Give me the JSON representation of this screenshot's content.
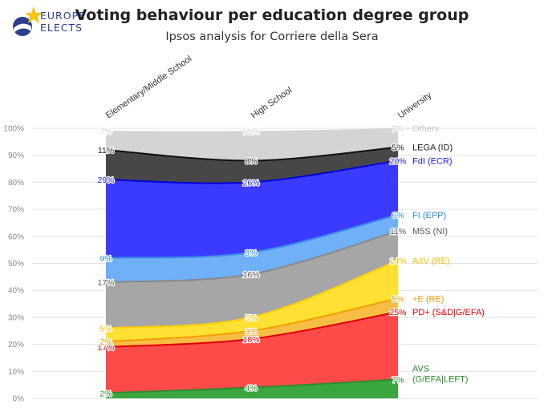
{
  "header": {
    "logo_line1": "EUROPE",
    "logo_line2": "ELECTS",
    "title": "Voting behaviour per education degree group",
    "subtitle": "Ipsos analysis for Corriere della Sera"
  },
  "chart_data": {
    "type": "area",
    "stacked": true,
    "categories": [
      "Elementary/Middle School",
      "High School",
      "University"
    ],
    "ylim": [
      0,
      100
    ],
    "yticks": [
      "0%",
      "10%",
      "20%",
      "30%",
      "40%",
      "50%",
      "60%",
      "70%",
      "80%",
      "90%",
      "100%"
    ],
    "grid": true,
    "legend": "right, labels at end of each area",
    "series": [
      {
        "name": "AVS (G/EFA|LEFT)",
        "legend_lines": [
          "AVS",
          "(G/EFA|LEFT)"
        ],
        "values": [
          2,
          4,
          7
        ],
        "labels": [
          "2%",
          "4%",
          "7%"
        ],
        "color": "#3aa63f",
        "line": "#2e8b31",
        "label_color": "#2e8b31"
      },
      {
        "name": "PD+ (S&D|G/EFA)",
        "legend_lines": [
          "PD+ (S&D|G/EFA)"
        ],
        "values": [
          17,
          18,
          25
        ],
        "labels": [
          "17%",
          "18%",
          "25%"
        ],
        "color": "#ff4a4a",
        "line": "#e00000",
        "label_color": "#dd0000"
      },
      {
        "name": "+E (RE)",
        "legend_lines": [
          "+E (RE)"
        ],
        "values": [
          2,
          3,
          5
        ],
        "labels": [
          "2%",
          "3%",
          "5%"
        ],
        "color": "#f8bd45",
        "line": "#f2a000",
        "label_color": "#f09a00"
      },
      {
        "name": "A/IV (RE)",
        "legend_lines": [
          "A/IV (RE)"
        ],
        "values": [
          5,
          5,
          14
        ],
        "labels": [
          "5%",
          "5%",
          "14%"
        ],
        "color": "#ffe033",
        "line": "#ffd000",
        "label_color": "#f0c000"
      },
      {
        "name": "M5S (NI)",
        "legend_lines": [
          "M5S (NI)"
        ],
        "values": [
          17,
          16,
          11
        ],
        "labels": [
          "17%",
          "16%",
          "11%"
        ],
        "color": "#a6a6a6",
        "line": "#888888",
        "label_color": "#555555"
      },
      {
        "name": "FI (EPP)",
        "legend_lines": [
          "FI (EPP)"
        ],
        "values": [
          9,
          8,
          6
        ],
        "labels": [
          "9%",
          "8%",
          "6%"
        ],
        "color": "#6fb0f7",
        "line": "#3a8ee6",
        "label_color": "#2f8ae0"
      },
      {
        "name": "FdI (ECR)",
        "legend_lines": [
          "FdI (ECR)"
        ],
        "values": [
          29,
          26,
          20
        ],
        "labels": [
          "29%",
          "26%",
          "20%"
        ],
        "color": "#3b3bff",
        "line": "#0000e0",
        "label_color": "#1a1aee"
      },
      {
        "name": "LEGA (ID)",
        "legend_lines": [
          "LEGA (ID)"
        ],
        "values": [
          11,
          8,
          5
        ],
        "labels": [
          "11%",
          "8%",
          "5%"
        ],
        "color": "#474747",
        "line": "#111111",
        "label_color": "#222222"
      },
      {
        "name": "Others",
        "legend_lines": [
          "Others"
        ],
        "values": [
          7,
          11,
          7
        ],
        "labels": [
          "7%",
          "11%",
          "7%"
        ],
        "color": "#d4d4d4",
        "line": "#d4d4d4",
        "label_color": "#d0d0d0"
      }
    ]
  }
}
